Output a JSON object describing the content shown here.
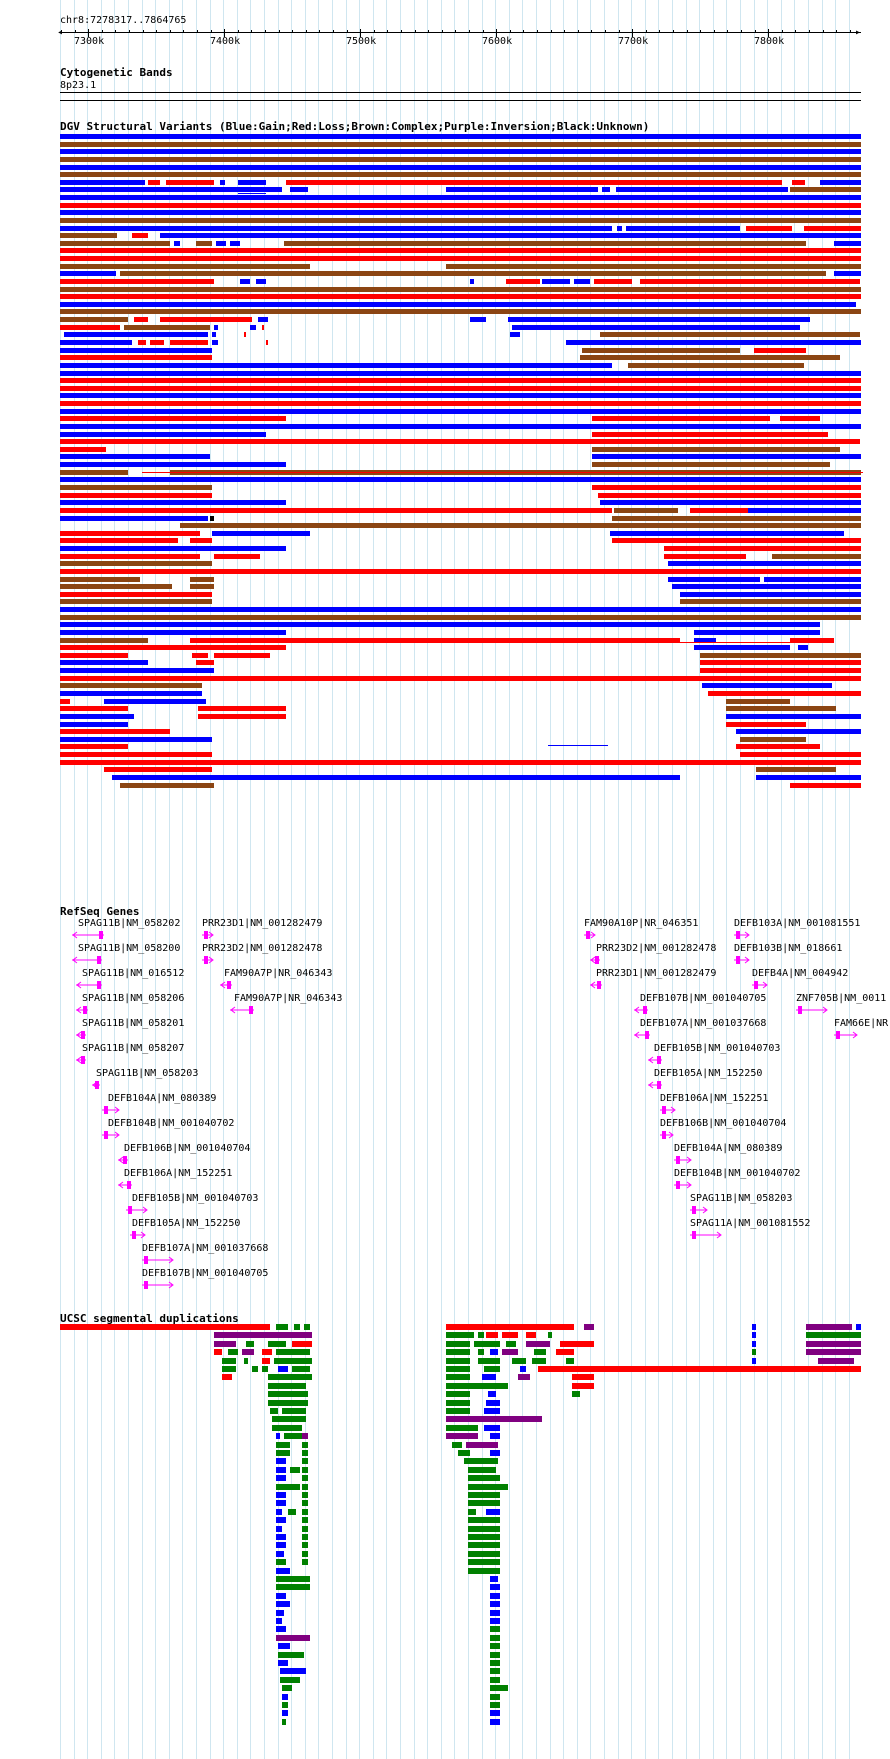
{
  "position": "chr8:7278317..7864765",
  "ruler": {
    "labels": [
      "7300k",
      "7400k",
      "7500k",
      "7600k",
      "7700k",
      "7800k"
    ]
  },
  "tracks": {
    "cytoband": {
      "title": "Cytogenetic Bands",
      "band": "8p23.1"
    },
    "dgv": {
      "title": "DGV Structural Variants (Blue:Gain;Red:Loss;Brown:Complex;Purple:Inversion;Black:Unknown)"
    },
    "refseq": {
      "title": "RefSeq Genes"
    },
    "segdup": {
      "title": "UCSC segmental duplications"
    }
  },
  "colors": {
    "gain": "#0000ff",
    "loss": "#ff0000",
    "complex": "#8b4513",
    "inversion": "#800080",
    "unknown": "#000000",
    "gene": "#ff00ff",
    "segdup_green": "#008000",
    "grid": "#cfe6f0"
  },
  "genes": [
    {
      "label": "SPAG11B|NM_058202",
      "strand": "-"
    },
    {
      "label": "SPAG11B|NM_058200",
      "strand": "-"
    },
    {
      "label": "SPAG11B|NM_016512",
      "strand": "-"
    },
    {
      "label": "SPAG11B|NM_058206",
      "strand": "-"
    },
    {
      "label": "SPAG11B|NM_058201",
      "strand": "-"
    },
    {
      "label": "SPAG11B|NM_058207",
      "strand": "-"
    },
    {
      "label": "SPAG11B|NM_058203",
      "strand": "-"
    },
    {
      "label": "DEFB104A|NM_080389",
      "strand": "+"
    },
    {
      "label": "DEFB104B|NM_001040702",
      "strand": "+"
    },
    {
      "label": "DEFB106B|NM_001040704",
      "strand": "-"
    },
    {
      "label": "DEFB106A|NM_152251",
      "strand": "-"
    },
    {
      "label": "DEFB105B|NM_001040703",
      "strand": "+"
    },
    {
      "label": "DEFB105A|NM_152250",
      "strand": "+"
    },
    {
      "label": "DEFB107A|NM_001037668",
      "strand": "+"
    },
    {
      "label": "DEFB107B|NM_001040705",
      "strand": "+"
    },
    {
      "label": "PRR23D1|NM_001282479",
      "strand": "+"
    },
    {
      "label": "PRR23D2|NM_001282478",
      "strand": "+"
    },
    {
      "label": "FAM90A7P|NR_046343",
      "strand": "-"
    },
    {
      "label": "FAM90A7P|NR_046343",
      "strand": "-"
    },
    {
      "label": "FAM90A10P|NR_046351",
      "strand": "+"
    },
    {
      "label": "PRR23D2|NM_001282478",
      "strand": "-"
    },
    {
      "label": "PRR23D1|NM_001282479",
      "strand": "-"
    },
    {
      "label": "DEFB107B|NM_001040705",
      "strand": "-"
    },
    {
      "label": "DEFB107A|NM_001037668",
      "strand": "-"
    },
    {
      "label": "DEFB105B|NM_001040703",
      "strand": "-"
    },
    {
      "label": "DEFB105A|NM_152250",
      "strand": "-"
    },
    {
      "label": "DEFB106A|NM_152251",
      "strand": "+"
    },
    {
      "label": "DEFB106B|NM_001040704",
      "strand": "+"
    },
    {
      "label": "DEFB104A|NM_080389",
      "strand": "+"
    },
    {
      "label": "DEFB104B|NM_001040702",
      "strand": "+"
    },
    {
      "label": "SPAG11B|NM_058203",
      "strand": "+"
    },
    {
      "label": "SPAG11A|NM_001081552",
      "strand": "+"
    },
    {
      "label": "DEFB103A|NM_001081551",
      "strand": "+"
    },
    {
      "label": "DEFB103B|NM_018661",
      "strand": "+"
    },
    {
      "label": "DEFB4A|NM_004942",
      "strand": "+"
    },
    {
      "label": "ZNF705B|NM_0011",
      "strand": "+"
    },
    {
      "label": "FAM66E|NR",
      "strand": "+"
    }
  ]
}
